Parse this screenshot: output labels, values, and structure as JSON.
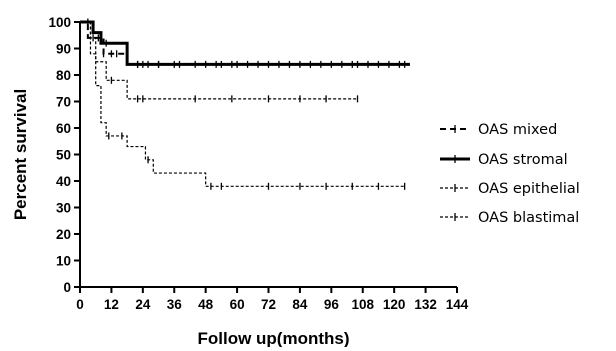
{
  "chart_data": {
    "type": "line",
    "step": true,
    "xlabel": "Follow up(months)",
    "ylabel": "Percent survival",
    "xlim": [
      0,
      144
    ],
    "ylim": [
      0,
      100
    ],
    "x_ticks": [
      0,
      12,
      24,
      36,
      48,
      60,
      72,
      84,
      96,
      108,
      120,
      132,
      144
    ],
    "y_ticks": [
      0,
      10,
      20,
      30,
      40,
      50,
      60,
      70,
      80,
      90,
      100
    ],
    "x_tick_labels": [
      "0",
      "12",
      "24",
      "36",
      "48",
      "60",
      "72",
      "84",
      "96",
      "108",
      "120",
      "132",
      "144"
    ],
    "y_tick_labels": [
      "0",
      "10",
      "20",
      "30",
      "40",
      "50",
      "60",
      "70",
      "80",
      "90",
      "100"
    ],
    "grid": false,
    "legend_position": "right",
    "series": [
      {
        "name": "OAS mixed",
        "line_style": "dashed",
        "stroke_width": 2,
        "steps": [
          [
            0,
            100
          ],
          [
            3,
            94
          ],
          [
            9,
            88
          ],
          [
            18,
            84
          ],
          [
            126,
            84
          ]
        ],
        "censors": [
          5,
          7,
          9,
          12,
          14,
          22,
          24,
          30,
          36,
          44,
          52,
          58,
          64,
          72,
          80,
          88,
          96,
          104,
          110,
          118,
          124
        ]
      },
      {
        "name": "OAS stromal",
        "line_style": "solid",
        "stroke_width": 3,
        "steps": [
          [
            0,
            100
          ],
          [
            5,
            96
          ],
          [
            8,
            92
          ],
          [
            18,
            84
          ],
          [
            126,
            84
          ]
        ],
        "censors": [
          10,
          22,
          26,
          30,
          38,
          48,
          54,
          60,
          68,
          76,
          84,
          92,
          100,
          106,
          114,
          122
        ]
      },
      {
        "name": "OAS epithelial",
        "line_style": "dashed",
        "stroke_width": 1.2,
        "steps": [
          [
            0,
            100
          ],
          [
            4,
            94
          ],
          [
            6,
            85
          ],
          [
            10,
            78
          ],
          [
            18,
            71
          ],
          [
            106,
            71
          ]
        ],
        "censors": [
          12,
          22,
          24,
          44,
          58,
          72,
          84,
          94,
          106
        ]
      },
      {
        "name": "OAS blastimal",
        "line_style": "dashed",
        "stroke_width": 1.2,
        "steps": [
          [
            0,
            100
          ],
          [
            4,
            88
          ],
          [
            6,
            76
          ],
          [
            8,
            62
          ],
          [
            10,
            57
          ],
          [
            18,
            53
          ],
          [
            25,
            48
          ],
          [
            28,
            43
          ],
          [
            48,
            38
          ],
          [
            124,
            38
          ]
        ],
        "censors": [
          3,
          11,
          16,
          26,
          50,
          54,
          72,
          84,
          94,
          104,
          114,
          124
        ]
      }
    ]
  }
}
